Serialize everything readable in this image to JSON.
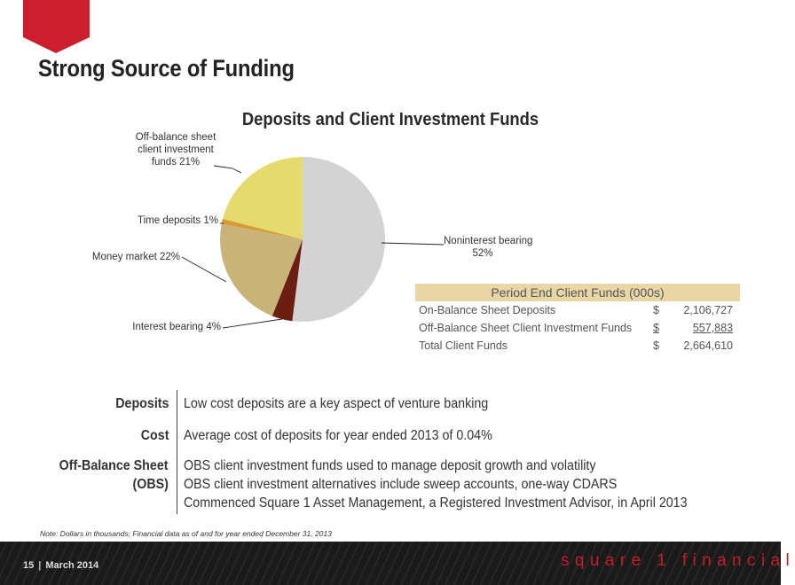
{
  "page": {
    "title": "Strong Source of Funding",
    "accent_color": "#cc1f2d"
  },
  "chart_data": {
    "type": "pie",
    "title": "Deposits and Client Investment Funds",
    "start": "top (12 o'clock), clockwise",
    "slices": [
      {
        "label": "Noninterest bearing",
        "value": 52,
        "display": "Noninterest bearing\n52%",
        "color": "#d3d3d3"
      },
      {
        "label": "Interest bearing",
        "value": 4,
        "display": "Interest bearing 4%",
        "color": "#6b1e12"
      },
      {
        "label": "Money market",
        "value": 22,
        "display": "Money market 22%",
        "color": "#c8b479"
      },
      {
        "label": "Time deposits",
        "value": 1,
        "display": "Time deposits 1%",
        "color": "#d79a35"
      },
      {
        "label": "Off-balance sheet client investment funds",
        "value": 21,
        "display": "Off-balance sheet\nclient investment\nfunds 21%",
        "color": "#e4da6d"
      }
    ]
  },
  "table": {
    "header": "Period End Client Funds (000s)",
    "rows": [
      {
        "label": "On-Balance Sheet Deposits",
        "currency": "$",
        "amount": "2,106,727"
      },
      {
        "label": "Off-Balance Sheet Client Investment Funds",
        "currency": "$",
        "amount": "557,883"
      },
      {
        "label": "Total Client Funds",
        "currency": "$",
        "amount": "2,664,610"
      }
    ]
  },
  "sections": [
    {
      "label": "Deposits",
      "lines": [
        "Low cost deposits are a key aspect of venture banking"
      ]
    },
    {
      "label": "Cost",
      "lines": [
        "Average cost of deposits for year ended 2013 of 0.04%"
      ]
    },
    {
      "label": "Off-Balance Sheet",
      "lines": [
        "OBS client investment funds used to manage deposit growth and volatility"
      ]
    },
    {
      "label": "(OBS)",
      "lines": [
        "OBS client investment alternatives include sweep accounts, one-way CDARS",
        "Commenced Square 1 Asset Management, a Registered Investment Advisor, in April 2013"
      ]
    }
  ],
  "note": "Note: Dollars in thousands; Financial data as of and for year ended December 31, 2013",
  "footer": {
    "page_number": "15",
    "date": "March 2014",
    "brand": "square 1 financial"
  }
}
